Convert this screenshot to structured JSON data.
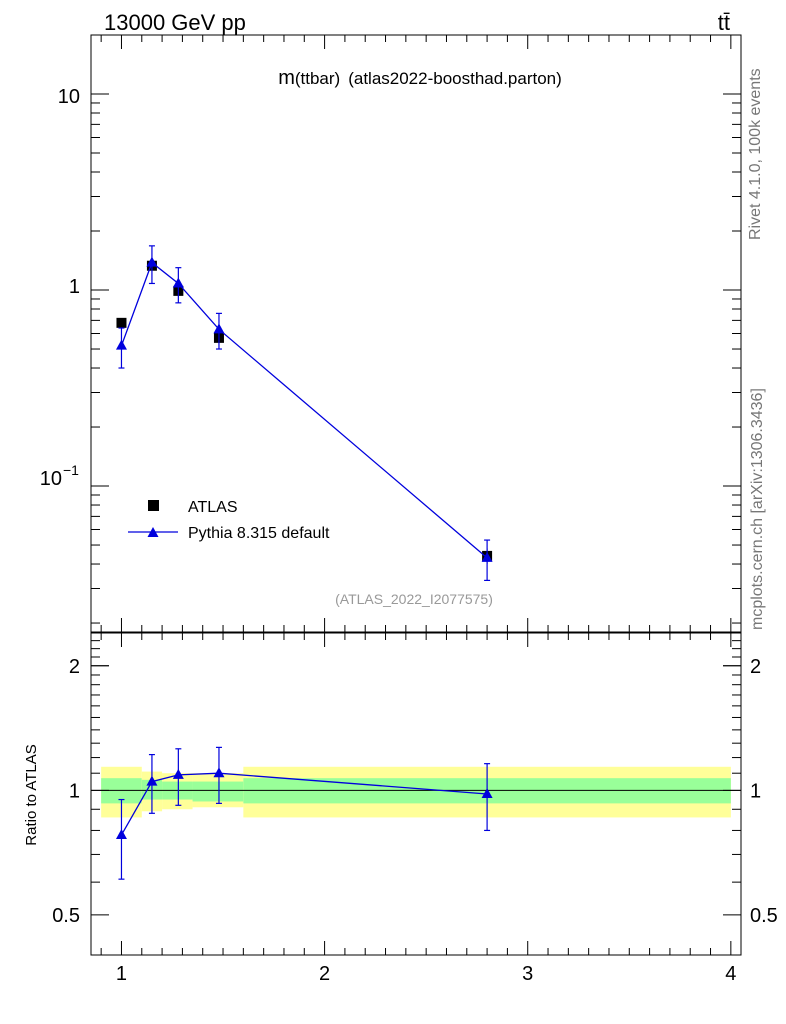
{
  "header": {
    "left_title": "13000 GeV pp",
    "right_title": "tt̄"
  },
  "side_labels": {
    "rivet": "Rivet 4.1.0,  100k events",
    "mcplots": "mcplots.cern.ch [arXiv:1306.3436]"
  },
  "chart_data": [
    {
      "type": "scatter",
      "panel": "main",
      "title": "m(ttbar)",
      "title_prefix": "m",
      "title_paren": "(ttbar)",
      "subtitle": "(atlas2022-boosthad.parton)",
      "watermark": "(ATLAS_2022_I2077575)",
      "xlabel": "",
      "ylabel": "",
      "xlim": [
        0.85,
        4.05
      ],
      "ylim": [
        0.018,
        20
      ],
      "yscale": "log",
      "y_tick_labels": [
        {
          "value": 10,
          "label": "10"
        },
        {
          "value": 1,
          "label": "1"
        },
        {
          "value": 0.1,
          "label": "10",
          "exponent": "−1"
        }
      ],
      "legend_position": "bottom-left",
      "series": [
        {
          "name": "ATLAS",
          "marker": "square",
          "color": "#000000",
          "x": [
            1.0,
            1.15,
            1.28,
            1.48,
            2.8
          ],
          "y": [
            0.68,
            1.33,
            0.99,
            0.57,
            0.044
          ],
          "yerr": [
            0.03,
            0.07,
            0.06,
            0.05,
            0.004
          ]
        },
        {
          "name": "Pythia 8.315 default",
          "marker": "triangle",
          "color": "#0000dd",
          "x": [
            1.0,
            1.15,
            1.28,
            1.48,
            2.8
          ],
          "y": [
            0.52,
            1.38,
            1.08,
            0.63,
            0.043
          ],
          "yerr": [
            0.12,
            0.3,
            0.22,
            0.13,
            0.01
          ]
        }
      ]
    },
    {
      "type": "scatter",
      "panel": "ratio",
      "ylabel": "Ratio to ATLAS",
      "xlabel": "",
      "xlim": [
        0.85,
        4.05
      ],
      "ylim": [
        0.4,
        2.4
      ],
      "yscale": "log",
      "x_ticks": [
        1,
        2,
        3,
        4
      ],
      "x_tick_labels": [
        "1",
        "2",
        "3",
        "4"
      ],
      "y_ticks": [
        0.5,
        1,
        2
      ],
      "y_tick_labels": [
        "0.5",
        "1",
        "2"
      ],
      "bands": [
        {
          "x0": 0.9,
          "x1": 1.1,
          "green": [
            0.93,
            1.07
          ],
          "yellow": [
            0.86,
            1.14
          ]
        },
        {
          "x0": 1.1,
          "x1": 1.2,
          "green": [
            0.95,
            1.06
          ],
          "yellow": [
            0.89,
            1.11
          ]
        },
        {
          "x0": 1.2,
          "x1": 1.35,
          "green": [
            0.95,
            1.05
          ],
          "yellow": [
            0.9,
            1.1
          ]
        },
        {
          "x0": 1.35,
          "x1": 1.6,
          "green": [
            0.94,
            1.05
          ],
          "yellow": [
            0.91,
            1.1
          ]
        },
        {
          "x0": 1.6,
          "x1": 4.0,
          "green": [
            0.93,
            1.07
          ],
          "yellow": [
            0.86,
            1.14
          ]
        }
      ],
      "series": [
        {
          "name": "Pythia 8.315 default / ATLAS",
          "color": "#0000dd",
          "x": [
            1.0,
            1.15,
            1.28,
            1.48,
            2.8
          ],
          "y": [
            0.78,
            1.05,
            1.09,
            1.1,
            0.98
          ],
          "yerr": [
            0.17,
            0.17,
            0.17,
            0.17,
            0.18
          ]
        }
      ]
    }
  ]
}
